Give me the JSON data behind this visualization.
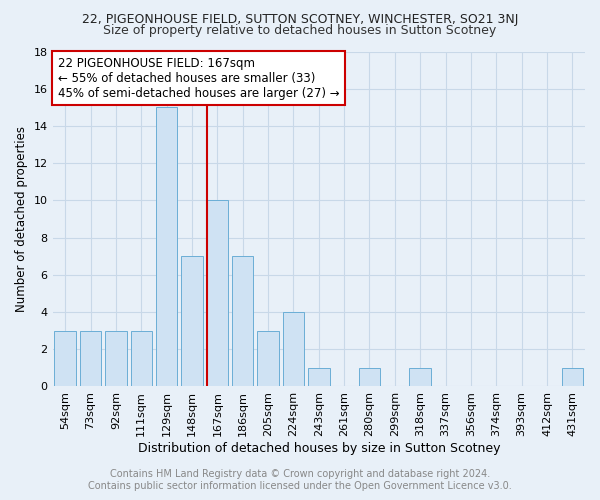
{
  "title": "22, PIGEONHOUSE FIELD, SUTTON SCOTNEY, WINCHESTER, SO21 3NJ",
  "subtitle": "Size of property relative to detached houses in Sutton Scotney",
  "xlabel": "Distribution of detached houses by size in Sutton Scotney",
  "ylabel": "Number of detached properties",
  "footer_line1": "Contains HM Land Registry data © Crown copyright and database right 2024.",
  "footer_line2": "Contains public sector information licensed under the Open Government Licence v3.0.",
  "annotation_line1": "22 PIGEONHOUSE FIELD: 167sqm",
  "annotation_line2": "← 55% of detached houses are smaller (33)",
  "annotation_line3": "45% of semi-detached houses are larger (27) →",
  "property_line_x": "167sqm",
  "categories": [
    "54sqm",
    "73sqm",
    "92sqm",
    "111sqm",
    "129sqm",
    "148sqm",
    "167sqm",
    "186sqm",
    "205sqm",
    "224sqm",
    "243sqm",
    "261sqm",
    "280sqm",
    "299sqm",
    "318sqm",
    "337sqm",
    "356sqm",
    "374sqm",
    "393sqm",
    "412sqm",
    "431sqm"
  ],
  "values": [
    3,
    3,
    3,
    3,
    15,
    7,
    10,
    7,
    3,
    4,
    1,
    0,
    1,
    0,
    1,
    0,
    0,
    0,
    0,
    0,
    1
  ],
  "bar_color": "#cfe2f3",
  "bar_edge_color": "#6baed6",
  "property_line_color": "#cc0000",
  "annotation_box_edge_color": "#cc0000",
  "annotation_box_face_color": "#ffffff",
  "grid_color": "#c8d8e8",
  "ylim": [
    0,
    18
  ],
  "yticks": [
    0,
    2,
    4,
    6,
    8,
    10,
    12,
    14,
    16,
    18
  ],
  "background_color": "#e8f0f8",
  "title_fontsize": 9,
  "subtitle_fontsize": 9,
  "xlabel_fontsize": 9,
  "ylabel_fontsize": 8.5,
  "tick_fontsize": 8,
  "annotation_fontsize": 8.5,
  "footer_fontsize": 7
}
